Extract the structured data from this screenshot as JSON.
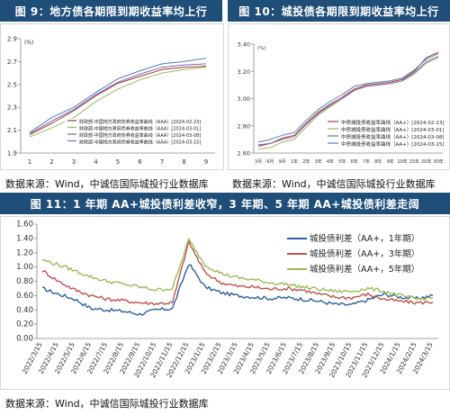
{
  "fig9": {
    "title": "图 9：地方债各期限到期收益率均上行",
    "source": "数据来源：Wind，中诚信国际城投行业数据库"
  },
  "fig10": {
    "title": "图 10：城投债各期限到期收益率均上行",
    "source": "数据来源：Wind，中诚信国际城投行业数据库"
  },
  "fig11": {
    "title": "图 11：1 年期 AA+城投债利差收窄，3 年期、5 年期 AA+城投债利差走阔",
    "source": "数据来源：Wind，中诚信国际城投行业数据库"
  },
  "chart_data": [
    {
      "id": "fig9",
      "type": "line",
      "unit_label": "(%)",
      "x": [
        1,
        2,
        3,
        4,
        5,
        6,
        7,
        8,
        9
      ],
      "ylim": [
        1.9,
        2.9
      ],
      "yticks": [
        "1.9",
        "2.1",
        "2.3",
        "2.5",
        "2.7",
        "2.9"
      ],
      "legend_position": "bottom-right",
      "series": [
        {
          "name": "财政部-中国地方政府债券收益率曲线（AAA）[2024-02-23]",
          "color": "#a33b3b",
          "values": [
            2.06,
            2.16,
            2.27,
            2.4,
            2.51,
            2.57,
            2.63,
            2.65,
            2.66
          ]
        },
        {
          "name": "财政部-中国地方政府债券收益率曲线（AAA）[2024-03-01]",
          "color": "#9bbb59",
          "values": [
            2.04,
            2.12,
            2.21,
            2.35,
            2.46,
            2.54,
            2.6,
            2.63,
            2.65
          ]
        },
        {
          "name": "财政部-中国地方政府债券收益率曲线（AAA）[2024-03-08]",
          "color": "#7f64a8",
          "values": [
            2.07,
            2.18,
            2.28,
            2.41,
            2.52,
            2.59,
            2.65,
            2.67,
            2.68
          ]
        },
        {
          "name": "财政部-中国地方政府债券收益率曲线（AAA）[2024-03-15]",
          "color": "#4f81bd",
          "values": [
            2.08,
            2.21,
            2.3,
            2.43,
            2.55,
            2.62,
            2.68,
            2.7,
            2.73
          ]
        }
      ]
    },
    {
      "id": "fig10",
      "type": "line",
      "unit_label": "(%)",
      "categories": [
        "3月",
        "6月",
        "9月",
        "1年",
        "2年",
        "3年",
        "4年",
        "5年",
        "6年",
        "7年",
        "8年",
        "9年",
        "10年",
        "15年",
        "20年",
        "30年"
      ],
      "ylim": [
        2.6,
        3.4
      ],
      "yticks": [
        "2.60",
        "2.80",
        "3.00",
        "3.20",
        "3.40"
      ],
      "legend_position": "bottom-right",
      "series": [
        {
          "name": "中债城投债收益率曲线（AA+）[2024-02-23]",
          "color": "#a33b3b",
          "values": [
            2.65,
            2.67,
            2.71,
            2.73,
            2.82,
            2.9,
            2.96,
            3.01,
            3.07,
            3.1,
            3.11,
            3.12,
            3.14,
            3.2,
            3.3,
            3.34
          ]
        },
        {
          "name": "中债城投债收益率曲线（AA+）[2024-03-01]",
          "color": "#9bbb59",
          "values": [
            2.63,
            2.64,
            2.68,
            2.7,
            2.79,
            2.88,
            2.94,
            3.0,
            3.06,
            3.09,
            3.1,
            3.11,
            3.13,
            3.18,
            3.26,
            3.3
          ]
        },
        {
          "name": "中债城投债收益率曲线（AA+）[2024-03-08]",
          "color": "#7f64a8",
          "values": [
            2.66,
            2.67,
            2.7,
            2.72,
            2.81,
            2.89,
            2.95,
            3.0,
            3.06,
            3.09,
            3.1,
            3.11,
            3.13,
            3.19,
            3.27,
            3.31
          ]
        },
        {
          "name": "中债城投债收益率曲线（AA+）[2024-03-15]",
          "color": "#4f81bd",
          "values": [
            2.68,
            2.7,
            2.73,
            2.75,
            2.84,
            2.92,
            2.98,
            3.03,
            3.09,
            3.11,
            3.12,
            3.13,
            3.15,
            3.21,
            3.29,
            3.33
          ]
        }
      ]
    },
    {
      "id": "fig11",
      "type": "line",
      "ylim": [
        0.0,
        1.6
      ],
      "yticks": [
        "0.00",
        "0.20",
        "0.40",
        "0.60",
        "0.80",
        "1.00",
        "1.20",
        "1.40",
        "1.60"
      ],
      "xticks": [
        "2022/3/15",
        "2022/4/15",
        "2022/5/15",
        "2022/6/15",
        "2022/7/15",
        "2022/8/15",
        "2022/9/15",
        "2022/10/15",
        "2022/11/15",
        "2022/12/15",
        "2023/1/15",
        "2023/2/15",
        "2023/3/15",
        "2023/4/15",
        "2023/5/15",
        "2023/6/15",
        "2023/7/15",
        "2023/8/15",
        "2023/9/15",
        "2023/10/15",
        "2023/11/15",
        "2023/12/15",
        "2024/1/15",
        "2024/2/15",
        "2024/3/15"
      ],
      "legend_position": "top-right",
      "series": [
        {
          "name": "城投债利差（AA+，1年期）",
          "color": "#2e5f9e",
          "values": [
            0.7,
            0.62,
            0.55,
            0.42,
            0.4,
            0.38,
            0.34,
            0.4,
            0.42,
            1.05,
            0.72,
            0.64,
            0.6,
            0.58,
            0.56,
            0.57,
            0.55,
            0.52,
            0.48,
            0.47,
            0.54,
            0.62,
            0.58,
            0.56,
            0.6
          ]
        },
        {
          "name": "城投债利差（AA+，3年期）",
          "color": "#c0504d",
          "values": [
            0.95,
            0.8,
            0.68,
            0.6,
            0.55,
            0.53,
            0.5,
            0.49,
            0.5,
            1.35,
            0.92,
            0.78,
            0.73,
            0.72,
            0.69,
            0.7,
            0.68,
            0.62,
            0.58,
            0.57,
            0.62,
            0.55,
            0.52,
            0.5,
            0.51
          ]
        },
        {
          "name": "城投债利差（AA+，5年期）",
          "color": "#9bbb59",
          "values": [
            1.1,
            1.03,
            0.95,
            0.86,
            0.8,
            0.76,
            0.72,
            0.68,
            0.7,
            1.38,
            1.03,
            0.91,
            0.85,
            0.82,
            0.78,
            0.76,
            0.72,
            0.69,
            0.66,
            0.66,
            0.7,
            0.66,
            0.6,
            0.55,
            0.57
          ]
        }
      ]
    }
  ]
}
